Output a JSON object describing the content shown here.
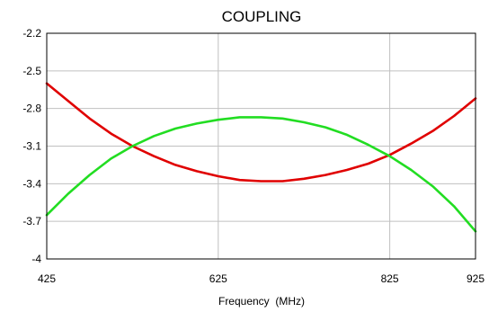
{
  "chart_data": {
    "type": "line",
    "title": "COUPLING",
    "xlabel": "Frequency  (MHz)",
    "ylabel": "",
    "xlim": [
      425,
      925
    ],
    "ylim": [
      -4,
      -2.2
    ],
    "xticks": [
      425,
      625,
      825,
      925
    ],
    "yticks": [
      -2.2,
      -2.5,
      -2.8,
      -3.1,
      -3.4,
      -3.7,
      -4
    ],
    "xtick_labels": [
      "425",
      "625",
      "825",
      "925"
    ],
    "ytick_labels": [
      "-2.2",
      "-2.5",
      "-2.8",
      "-3.1",
      "-3.4",
      "-3.7",
      "-4"
    ],
    "grid": true,
    "series": [
      {
        "color": "#e00000",
        "x": [
          425,
          450,
          475,
          500,
          525,
          550,
          575,
          600,
          625,
          650,
          675,
          700,
          725,
          750,
          775,
          800,
          825,
          850,
          875,
          900,
          925
        ],
        "values": [
          -2.6,
          -2.74,
          -2.88,
          -3.0,
          -3.1,
          -3.18,
          -3.25,
          -3.3,
          -3.34,
          -3.37,
          -3.38,
          -3.38,
          -3.36,
          -3.33,
          -3.29,
          -3.24,
          -3.17,
          -3.08,
          -2.98,
          -2.86,
          -2.72
        ]
      },
      {
        "color": "#22dd22",
        "x": [
          425,
          450,
          475,
          500,
          525,
          550,
          575,
          600,
          625,
          650,
          675,
          700,
          725,
          750,
          775,
          800,
          825,
          850,
          875,
          900,
          925
        ],
        "values": [
          -3.65,
          -3.48,
          -3.33,
          -3.2,
          -3.1,
          -3.02,
          -2.96,
          -2.92,
          -2.89,
          -2.87,
          -2.87,
          -2.88,
          -2.91,
          -2.95,
          -3.01,
          -3.09,
          -3.18,
          -3.29,
          -3.42,
          -3.58,
          -3.78
        ]
      }
    ]
  }
}
